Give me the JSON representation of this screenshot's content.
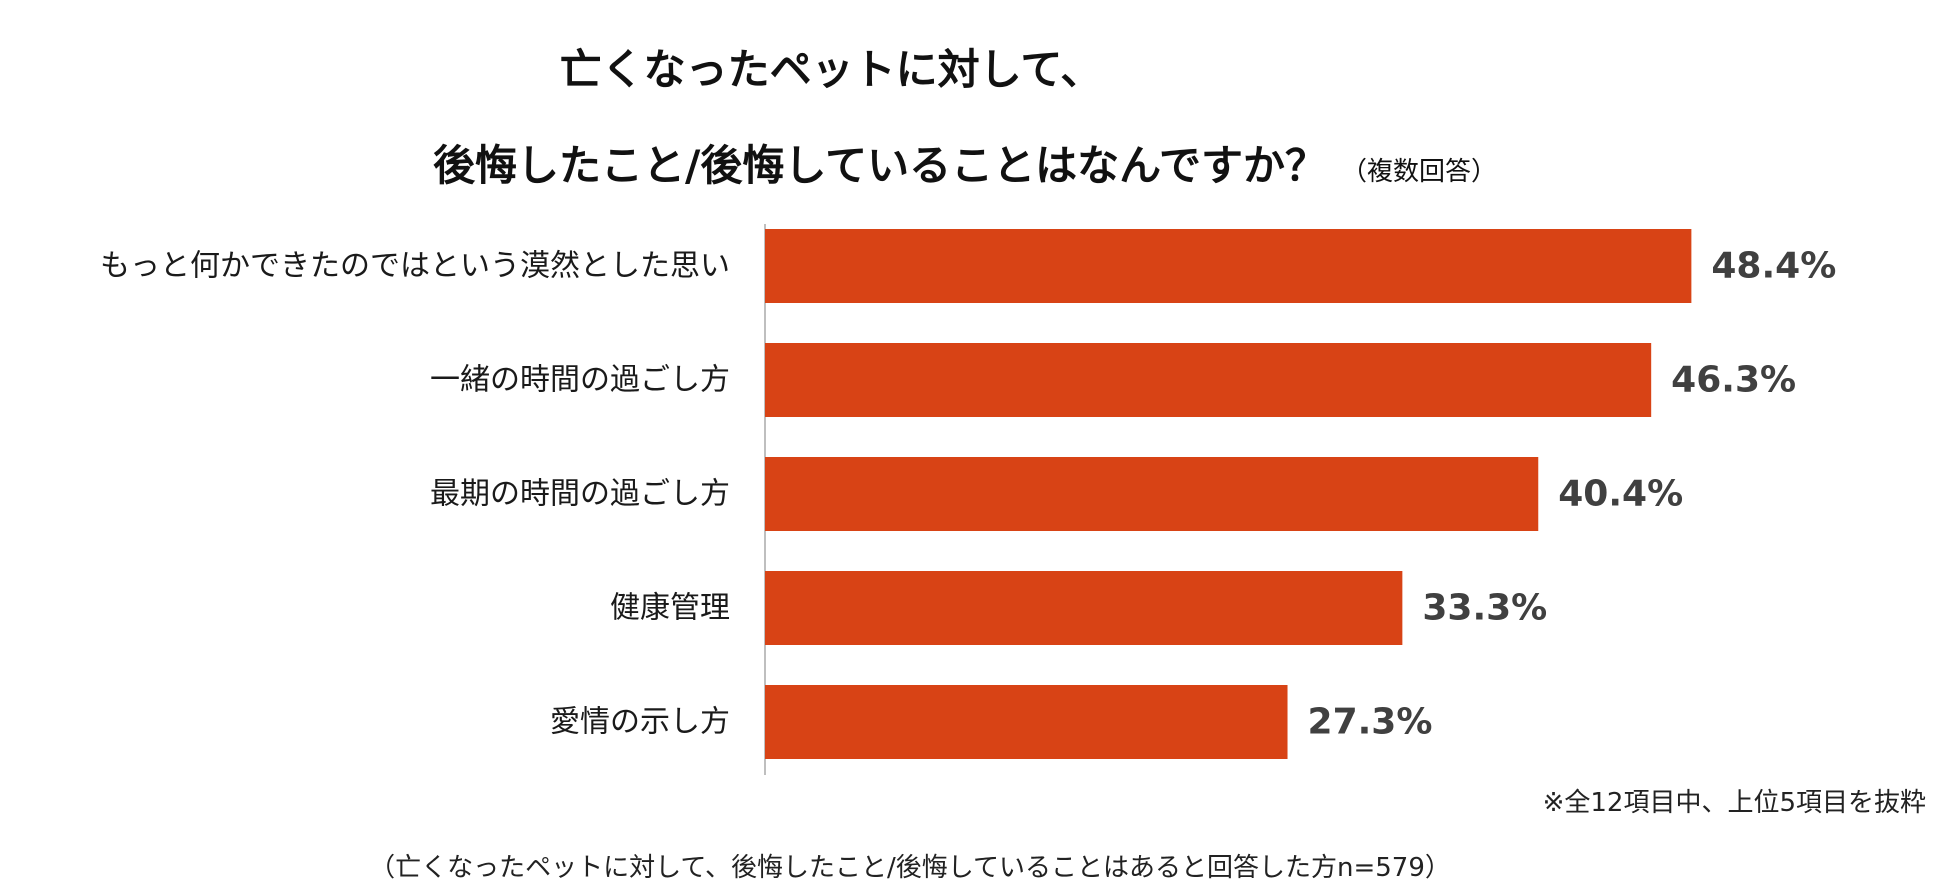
{
  "title_line1": "亡くなったペットに対して、",
  "title_line2": "後悔したこと/後悔していることはなんですか？",
  "title_suffix": "（複数回答）",
  "note_top": "※全12項目中、上位5項目を抜粋",
  "note_bottom": "（亡くなったペットに対して、後悔したこと/後悔していることはあると回答した方n=579）",
  "colors": {
    "bar": "#d84315",
    "value_label": "#404040",
    "axis": "#bfbfbf",
    "category_label": "#1a1a1a"
  },
  "chart_data": {
    "type": "bar",
    "orientation": "horizontal",
    "title": "亡くなったペットに対して、後悔したこと/後悔していることはなんですか？",
    "subtitle": "（複数回答）",
    "categories": [
      "もっと何かできたのではという漠然とした思い",
      "一緒の時間の過ごし方",
      "最期の時間の過ごし方",
      "健康管理",
      "愛情の示し方"
    ],
    "values": [
      48.4,
      46.3,
      40.4,
      33.3,
      27.3
    ],
    "value_labels": [
      "48.4%",
      "46.3%",
      "40.4%",
      "33.3%",
      "27.3%"
    ],
    "unit": "%",
    "xlim": [
      0,
      100
    ],
    "grid": false,
    "legend": "none"
  }
}
